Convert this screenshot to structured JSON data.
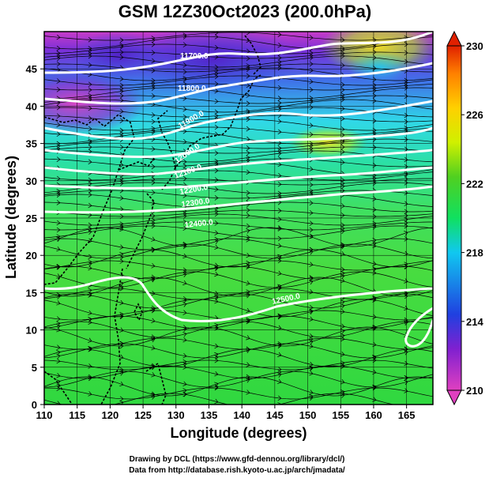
{
  "title": "GSM 12Z30Oct2023 (200.0hPa)",
  "map": {
    "x_label": "Longitude (degrees)",
    "y_label": "Latitude  (degrees)",
    "lon_range": [
      110,
      169
    ],
    "lat_range": [
      0,
      50
    ],
    "x_ticks": [
      "110",
      "115",
      "120",
      "125",
      "130",
      "135",
      "140",
      "145",
      "150",
      "155",
      "160",
      "165"
    ],
    "y_ticks": [
      "0",
      "5",
      "10",
      "15",
      "20",
      "25",
      "30",
      "35",
      "40",
      "45"
    ],
    "grid": true,
    "colorbar": {
      "orientation": "vertical",
      "placement": "right",
      "min": 210,
      "max": 230,
      "tick_labels": [
        "210",
        "214",
        "218",
        "222",
        "226",
        "230"
      ],
      "colors": [
        "#e040c0",
        "#8020d0",
        "#2040e0",
        "#10c8f0",
        "#10e060",
        "#50d020",
        "#d0f000",
        "#ffd000",
        "#ff8000",
        "#e02000"
      ]
    },
    "contour_labels": [
      "11700.0",
      "11800.0",
      "11900.0",
      "12000.0",
      "12100.0",
      "12200.0",
      "12300.0",
      "12400.0",
      "12500.0"
    ],
    "colors": {
      "land_outline": "#000000",
      "contours": "#ffffff",
      "streamlines": "#000000"
    }
  },
  "credits": {
    "line1": "Drawing by DCL (https://www.gfd-dennou.org/library/dcl/)",
    "line2": "Data from http://database.rish.kyoto-u.ac.jp/arch/jmadata/"
  }
}
